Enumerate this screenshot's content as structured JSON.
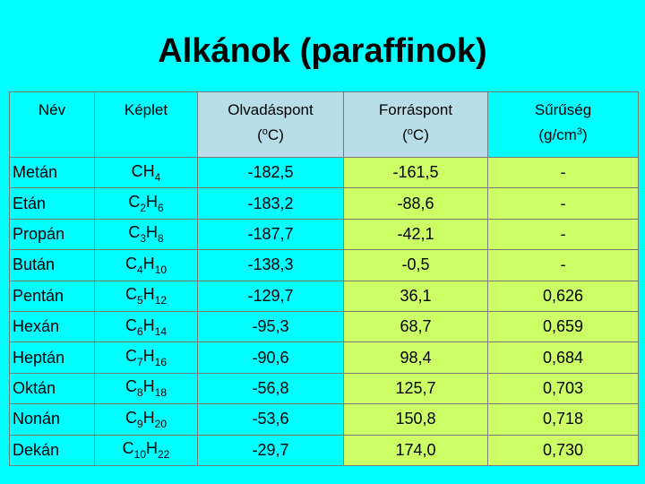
{
  "title": "Alkánok (paraffinok)",
  "table": {
    "header": [
      {
        "label": "Név"
      },
      {
        "label": "Képlet"
      },
      {
        "label": "Olvadáspont",
        "unit": [
          "(",
          "o",
          "C)"
        ]
      },
      {
        "label": "Forráspont",
        "unit": [
          "(",
          "o",
          "C)"
        ]
      },
      {
        "label": "Sűrűség",
        "unit": [
          "(g/cm",
          "3",
          ")"
        ]
      }
    ],
    "rows": [
      [
        "Metán",
        [
          "CH",
          "4"
        ],
        "-182,5",
        "-161,5",
        "-"
      ],
      [
        "Etán",
        [
          "C",
          "2",
          "H",
          "6"
        ],
        "-183,2",
        "-88,6",
        "-"
      ],
      [
        "Propán",
        [
          "C",
          "3",
          "H",
          "8"
        ],
        "-187,7",
        "-42,1",
        "-"
      ],
      [
        "Bután",
        [
          "C",
          "4",
          "H",
          "10"
        ],
        "-138,3",
        "-0,5",
        "-"
      ],
      [
        "Pentán",
        [
          "C",
          "5",
          "H",
          "12"
        ],
        "-129,7",
        "36,1",
        "0,626"
      ],
      [
        "Hexán",
        [
          "C",
          "6",
          "H",
          "14"
        ],
        "-95,3",
        "68,7",
        "0,659"
      ],
      [
        "Heptán",
        [
          "C",
          "7",
          "H",
          "16"
        ],
        "-90,6",
        "98,4",
        "0,684"
      ],
      [
        "Oktán",
        [
          "C",
          "8",
          "H",
          "18"
        ],
        "-56,8",
        "125,7",
        "0,703"
      ],
      [
        "Nonán",
        [
          "C",
          "9",
          "H",
          "20"
        ],
        "-53,6",
        "150,8",
        "0,718"
      ],
      [
        "Dekán",
        [
          "C",
          "10",
          "H",
          "22"
        ],
        "-29,7",
        "174,0",
        "0,730"
      ]
    ]
  }
}
